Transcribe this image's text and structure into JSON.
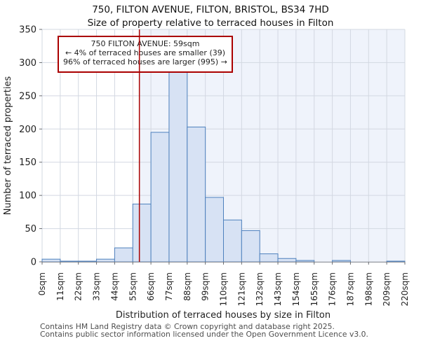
{
  "title": {
    "line1": "750, FILTON AVENUE, FILTON, BRISTOL, BS34 7HD",
    "line2": "Size of property relative to terraced houses in Filton"
  },
  "annotation": {
    "line1": "750 FILTON AVENUE: 59sqm",
    "line2": "← 4% of terraced houses are smaller (39)",
    "line3": "96% of terraced houses are larger (995) →"
  },
  "chart_data": {
    "type": "bar",
    "title": "750, FILTON AVENUE, FILTON, BRISTOL, BS34 7HD",
    "subtitle": "Size of property relative to terraced houses in Filton",
    "xlabel": "Distribution of terraced houses by size in Filton",
    "ylabel": "Number of terraced properties",
    "bin_width_sqm": 11,
    "bin_starts": [
      0,
      11,
      22,
      33,
      44,
      55,
      66,
      77,
      88,
      99,
      110,
      121,
      132,
      143,
      154,
      165,
      176,
      187,
      198,
      209
    ],
    "values": [
      4,
      1,
      1,
      4,
      21,
      87,
      195,
      290,
      203,
      97,
      63,
      47,
      12,
      5,
      2,
      0,
      2,
      0,
      0,
      1
    ],
    "x_tick_labels": [
      "0sqm",
      "11sqm",
      "22sqm",
      "33sqm",
      "44sqm",
      "55sqm",
      "66sqm",
      "77sqm",
      "88sqm",
      "99sqm",
      "110sqm",
      "121sqm",
      "132sqm",
      "143sqm",
      "154sqm",
      "165sqm",
      "176sqm",
      "187sqm",
      "198sqm",
      "209sqm",
      "220sqm"
    ],
    "y_ticks": [
      0,
      50,
      100,
      150,
      200,
      250,
      300,
      350
    ],
    "ylim": [
      0,
      350
    ],
    "xlim_sqm": [
      0,
      220
    ],
    "grid": true,
    "legend": null,
    "marker": {
      "label": "750 FILTON AVENUE",
      "value_sqm": 59,
      "smaller_pct": 4,
      "smaller_count": 39,
      "larger_pct": 96,
      "larger_count": 995
    },
    "colors": {
      "bar_fill": "#d7e2f4",
      "bar_stroke": "#4e81bd",
      "shade_right_of_marker": "#eff3fb",
      "grid": "#d3d8e2",
      "axis": "#9a9da3",
      "tick": "#6b6e73",
      "marker_line": "#aa0000",
      "annotation_border": "#aa0000",
      "text": "#1f1f1f"
    }
  },
  "footer": {
    "line1": "Contains HM Land Registry data © Crown copyright and database right 2025.",
    "line2": "Contains public sector information licensed under the Open Government Licence v3.0."
  }
}
